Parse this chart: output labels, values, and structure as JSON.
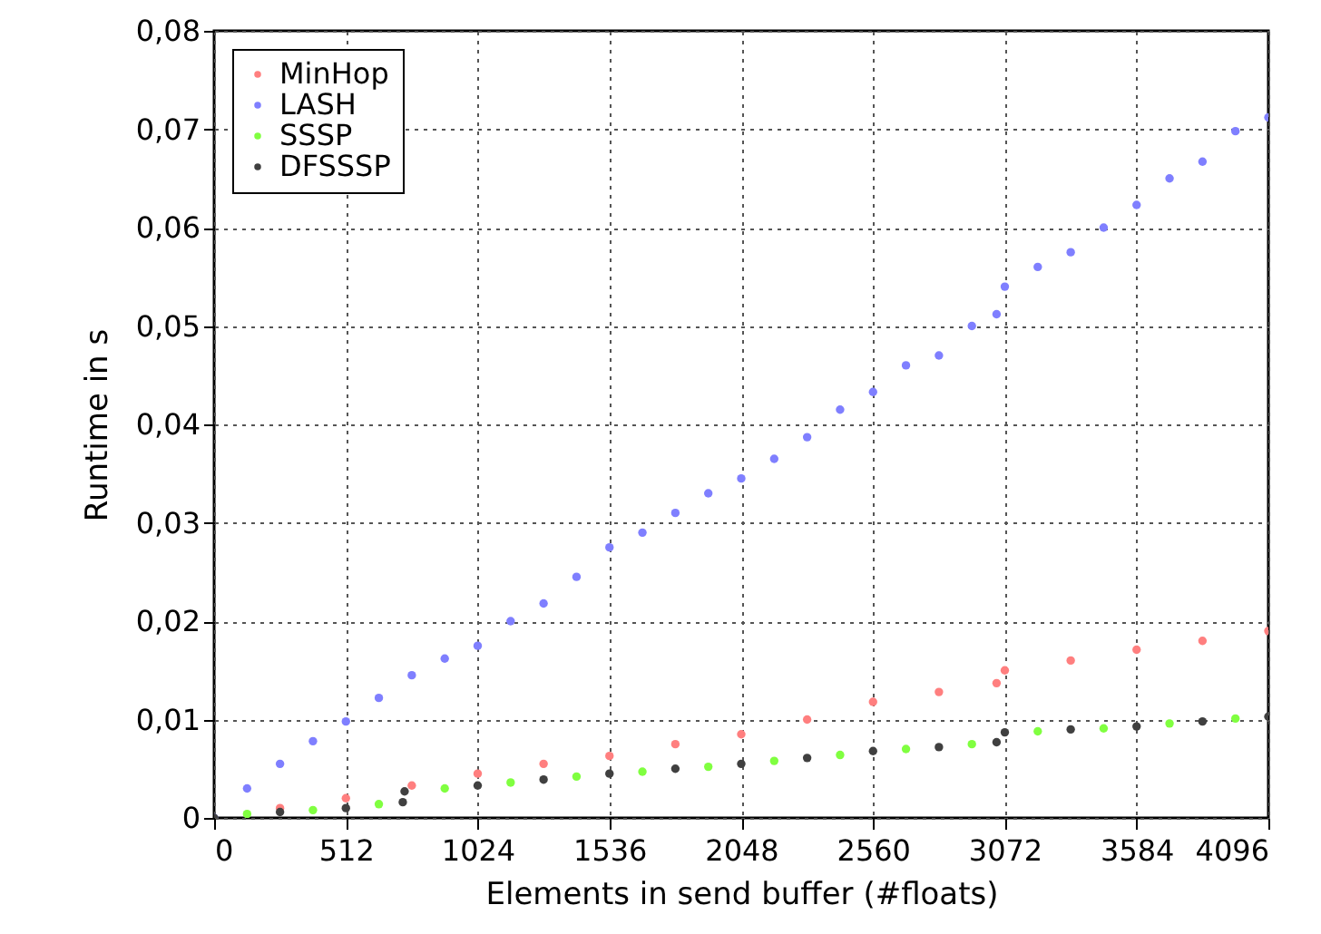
{
  "chart_data": {
    "type": "scatter",
    "xlabel": "Elements in send buffer (#floats)",
    "ylabel": "Runtime in s",
    "xlim": [
      0,
      4096
    ],
    "xticks": [
      0,
      512,
      1024,
      1536,
      2048,
      2560,
      3072,
      3584,
      4096
    ],
    "ylim": [
      0,
      0.08
    ],
    "yticks": [
      {
        "value": 0,
        "label": "0"
      },
      {
        "value": 0.01,
        "label": "0,01"
      },
      {
        "value": 0.02,
        "label": "0,02"
      },
      {
        "value": 0.03,
        "label": "0,03"
      },
      {
        "value": 0.04,
        "label": "0,04"
      },
      {
        "value": 0.05,
        "label": "0,05"
      },
      {
        "value": 0.06,
        "label": "0,06"
      },
      {
        "value": 0.07,
        "label": "0,07"
      },
      {
        "value": 0.08,
        "label": "0,08"
      }
    ],
    "grid": true,
    "legend": "top left",
    "marker": "circle",
    "series": [
      {
        "name": "MinHop",
        "color": "#ff7f7f",
        "x": [
          256,
          512,
          768,
          1024,
          1280,
          1536,
          1792,
          2048,
          2304,
          2560,
          2816,
          3040,
          3072,
          3328,
          3584,
          3840,
          4096
        ],
        "values": [
          0.001,
          0.002,
          0.0033,
          0.0045,
          0.0055,
          0.0063,
          0.0075,
          0.0085,
          0.01,
          0.0118,
          0.0128,
          0.0137,
          0.015,
          0.016,
          0.0171,
          0.018,
          0.019
        ]
      },
      {
        "name": "LASH",
        "color": "#7f7fff",
        "x": [
          0,
          128,
          256,
          384,
          512,
          640,
          768,
          896,
          1024,
          1152,
          1280,
          1408,
          1536,
          1664,
          1792,
          1920,
          2048,
          2176,
          2304,
          2432,
          2560,
          2688,
          2816,
          2944,
          3040,
          3072,
          3200,
          3328,
          3456,
          3584,
          3712,
          3840,
          3968,
          4096
        ],
        "values": [
          0,
          0.003,
          0.0055,
          0.0078,
          0.0098,
          0.0122,
          0.0145,
          0.0162,
          0.0175,
          0.02,
          0.0218,
          0.0245,
          0.0275,
          0.029,
          0.031,
          0.033,
          0.0345,
          0.0365,
          0.0387,
          0.0415,
          0.0433,
          0.046,
          0.047,
          0.05,
          0.0512,
          0.054,
          0.056,
          0.0575,
          0.06,
          0.0623,
          0.065,
          0.0667,
          0.0698,
          0.0712
        ]
      },
      {
        "name": "SSSP",
        "color": "#80ff40",
        "x": [
          128,
          384,
          640,
          896,
          1152,
          1408,
          1664,
          1920,
          2176,
          2432,
          2688,
          2944,
          3200,
          3456,
          3712,
          3968
        ],
        "values": [
          0.0004,
          0.0008,
          0.0014,
          0.003,
          0.0036,
          0.0042,
          0.0047,
          0.0052,
          0.0058,
          0.0064,
          0.007,
          0.0075,
          0.0088,
          0.0091,
          0.0096,
          0.0101
        ]
      },
      {
        "name": "DFSSSP",
        "color": "#404040",
        "x": [
          0,
          256,
          512,
          733,
          740,
          1024,
          1280,
          1536,
          1792,
          2048,
          2304,
          2560,
          2816,
          3040,
          3072,
          3328,
          3584,
          3840,
          4096
        ],
        "values": [
          0,
          0.0006,
          0.001,
          0.0016,
          0.0027,
          0.0033,
          0.0039,
          0.0045,
          0.005,
          0.0055,
          0.0061,
          0.0068,
          0.0072,
          0.0077,
          0.0087,
          0.009,
          0.0093,
          0.0098,
          0.0103
        ]
      }
    ]
  }
}
